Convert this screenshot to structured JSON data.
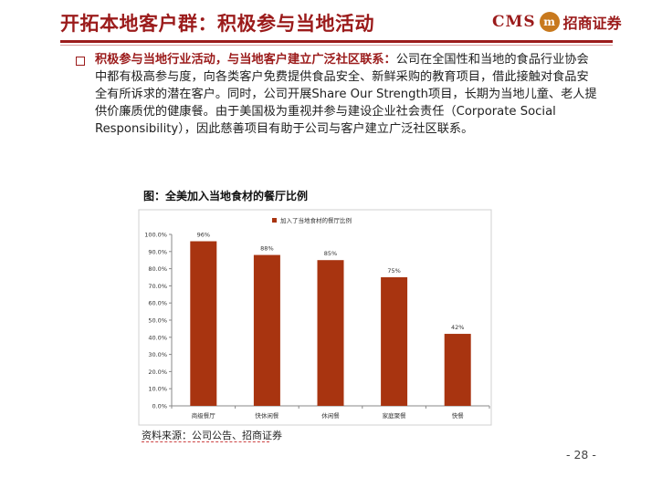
{
  "header": {
    "title": "开拓本地客户群：积极参与当地活动",
    "logo_cms": "CMS",
    "logo_seal": "m",
    "logo_cn": "招商证券"
  },
  "body": {
    "lead": "积极参与当地行业活动，与当地客户建立广泛社区联系：",
    "text": "公司在全国性和当地的食品行业协会中都有极高参与度，向各类客户免费提供食品安全、新鲜采购的教育项目，借此接触对食品安全有所诉求的潜在客户。同时，公司开展Share Our Strength项目，长期为当地儿童、老人提供价廉质优的健康餐。由于美国极为重视并参与建设企业社会责任（Corporate Social Responsibility），因此慈善项目有助于公司与客户建立广泛社区联系。"
  },
  "figure": {
    "title": "图：全美加入当地食材的餐厅比例",
    "source": "资料来源：公司公告、招商证券"
  },
  "chart_data": {
    "type": "bar",
    "categories": [
      "商级餐厅",
      "快休闲餐",
      "休闲餐",
      "家庭聚餐",
      "快餐"
    ],
    "series": [
      {
        "name": "加入了当地食材的餐厅比例",
        "values": [
          96,
          88,
          85,
          75,
          42
        ],
        "color": "#a83410"
      }
    ],
    "data_labels": [
      "96%",
      "88%",
      "85%",
      "75%",
      "42%"
    ],
    "ylim": [
      0,
      100
    ],
    "yticks": [
      0,
      10,
      20,
      30,
      40,
      50,
      60,
      70,
      80,
      90,
      100
    ],
    "ytick_labels": [
      "0.0%",
      "10.0%",
      "20.0%",
      "30.0%",
      "40.0%",
      "50.0%",
      "60.0%",
      "70.0%",
      "80.0%",
      "90.0%",
      "100.0%"
    ],
    "legend_position": "top",
    "grid": false
  },
  "footer": {
    "page": "- 28 -"
  }
}
